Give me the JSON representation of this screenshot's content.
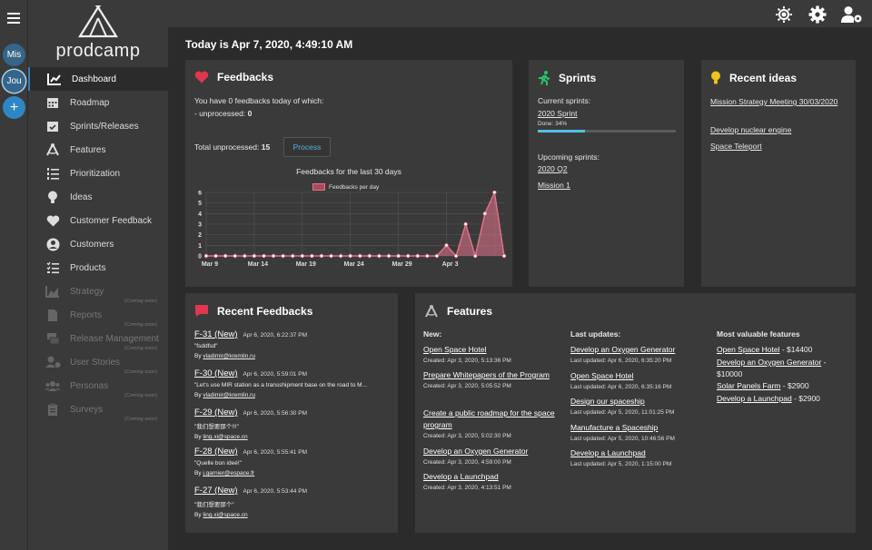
{
  "rail": {
    "workspaces": [
      "Mis",
      "Jou"
    ],
    "add_symbol": "+"
  },
  "logo": {
    "text": "prodcamp"
  },
  "nav": {
    "items": [
      {
        "label": "Dashboard",
        "icon": "chart-line-icon"
      },
      {
        "label": "Roadmap",
        "icon": "calendar-icon"
      },
      {
        "label": "Sprints/Releases",
        "icon": "calendar-check-icon"
      },
      {
        "label": "Features",
        "icon": "drafting-compass-icon"
      },
      {
        "label": "Prioritization",
        "icon": "list-ol-icon"
      },
      {
        "label": "Ideas",
        "icon": "lightbulb-icon"
      },
      {
        "label": "Customer Feedback",
        "icon": "heart-icon"
      },
      {
        "label": "Customers",
        "icon": "user-circle-icon"
      },
      {
        "label": "Products",
        "icon": "tasks-icon"
      },
      {
        "label": "Strategy",
        "icon": "chart-area-icon",
        "soon": "(Coming soon)"
      },
      {
        "label": "Reports",
        "icon": "file-icon",
        "soon": "(Coming soon)"
      },
      {
        "label": "Release Management",
        "icon": "mail-bulk-icon",
        "soon": "(Coming soon)"
      },
      {
        "label": "User Stories",
        "icon": "user-cog-icon",
        "soon": "(Coming soon)"
      },
      {
        "label": "Personas",
        "icon": "users-icon",
        "soon": "(Coming soon)"
      },
      {
        "label": "Surveys",
        "icon": "clipboard-icon",
        "soon": "(Coming soon)"
      }
    ]
  },
  "topbar": {
    "icons": [
      "brightness-icon",
      "gear-icon",
      "user-cog-icon"
    ]
  },
  "today": "Today is Apr 7, 2020, 4:49:10 AM",
  "feedbacks": {
    "title": "Feedbacks",
    "line1": "You have 0 feedbacks today of which:",
    "line2_prefix": "- unprocessed: ",
    "line2_value": "0",
    "total_prefix": "Total unprocessed: ",
    "total_value": "15",
    "process_button": "Process"
  },
  "chart_data": {
    "type": "area",
    "title": "Feedbacks for the last 30 days",
    "series": [
      {
        "name": "Feedbacks per day",
        "values": [
          0,
          0,
          0,
          0,
          0,
          0,
          0,
          0,
          0,
          0,
          0,
          0,
          0,
          0,
          0,
          0,
          0,
          0,
          0,
          0,
          0,
          0,
          0,
          0,
          0,
          1,
          0,
          3,
          0,
          4,
          6,
          0
        ]
      }
    ],
    "x_tick_labels": [
      "Mar 9",
      "Mar 14",
      "Mar 19",
      "Mar 24",
      "Mar 29",
      "Apr 3"
    ],
    "ylim": [
      0,
      6
    ],
    "y_ticks": [
      "0",
      "1",
      "2",
      "3",
      "4",
      "5",
      "6"
    ],
    "grid": true,
    "legend": "top",
    "color": "#e3738a"
  },
  "sprints": {
    "title": "Sprints",
    "current_label": "Current sprints:",
    "current": {
      "name": "2020 Sprint",
      "done": "Done: 34%",
      "progress": 0.34
    },
    "upcoming_label": "Upcoming sprints:",
    "upcoming": [
      "2020 Q2",
      "Mission 1"
    ]
  },
  "ideas": {
    "title": "Recent ideas",
    "items": [
      "Mission Strategy Meeting 30/03/2020",
      "Develop nuclear engine",
      "Space Teleport"
    ]
  },
  "recent_feedbacks": {
    "title": "Recent Feedbacks",
    "items": [
      {
        "id": "F-31 (New)",
        "date": "Apr 6, 2020, 6:22:37 PM",
        "text": "\"fsddfsd\"",
        "by": "By ",
        "author": "vladimir@kremlin.ru"
      },
      {
        "id": "F-30 (New)",
        "date": "Apr 6, 2020, 5:59:01 PM",
        "text": "\"Let's use MIR station as a transshipment base on the road to M...",
        "by": "By ",
        "author": "vladimir@kremlin.ru"
      },
      {
        "id": "F-29 (New)",
        "date": "Apr 6, 2020, 5:56:30 PM",
        "text": "\"我们想要那个!!!\"",
        "by": "By ",
        "author": "ling.xi@space.cn"
      },
      {
        "id": "F-28 (New)",
        "date": "Apr 6, 2020, 5:55:41 PM",
        "text": "\"Quelle bon ideé!\"",
        "by": "By ",
        "author": "j.garnier@espace.fr"
      },
      {
        "id": "F-27 (New)",
        "date": "Apr 6, 2020, 5:53:44 PM",
        "text": "\"我们想要那个\"",
        "by": "By ",
        "author": "ling.xi@space.cn"
      }
    ]
  },
  "features": {
    "title": "Features",
    "new_label": "New:",
    "new_items": [
      {
        "name": "Open Space Hotel",
        "meta": "Created: Apr 3, 2020, 5:13:36 PM"
      },
      {
        "name": "Prepare Whitepapers of the Program",
        "meta": "Created: Apr 3, 2020, 5:05:52 PM"
      },
      {
        "name": "Create a public roadmap for the space program",
        "meta": "Created: Apr 3, 2020, 5:02:30 PM"
      },
      {
        "name": "Develop an Oxygen Generator",
        "meta": "Created: Apr 3, 2020, 4:59:00 PM"
      },
      {
        "name": "Develop a Launchpad",
        "meta": "Created: Apr 3, 2020, 4:13:51 PM"
      }
    ],
    "updates_label": "Last updates:",
    "update_items": [
      {
        "name": "Develop an Oxygen Generator",
        "meta": "Last updated: Apr 6, 2020, 6:35:20 PM"
      },
      {
        "name": "Open Space Hotel",
        "meta": "Last updated: Apr 6, 2020, 6:35:16 PM"
      },
      {
        "name": "Design our spaceship",
        "meta": "Last updated: Apr 5, 2020, 11:01:25 PM"
      },
      {
        "name": "Manufacture a Spaceship",
        "meta": "Last updated: Apr 5, 2020, 10:46:56 PM"
      },
      {
        "name": "Develop a Launchpad",
        "meta": "Last updated: Apr 5, 2020, 1:15:00 PM"
      }
    ],
    "valuable_label": "Most valuable features",
    "valuable_items": [
      {
        "name": "Open Space Hotel",
        "value": " - $14400"
      },
      {
        "name": "Develop an Oxygen Generator",
        "value": " - $10000"
      },
      {
        "name": "Solar Panels Farm",
        "value": " - $2900"
      },
      {
        "name": "Develop a Launchpad",
        "value": " - $2900"
      }
    ]
  }
}
